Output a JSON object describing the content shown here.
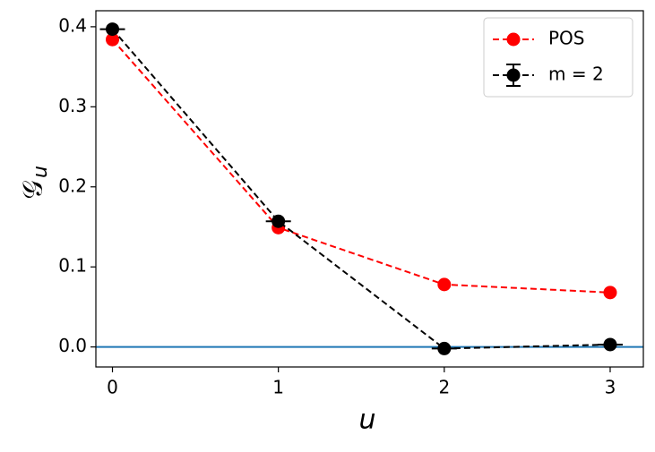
{
  "chart_data": {
    "type": "line",
    "x_label": "u",
    "y_label": "𝒢",
    "y_label_sub": "u",
    "x": [
      0,
      1,
      2,
      3
    ],
    "series": [
      {
        "name": "POS",
        "color": "#ff0000",
        "values": [
          0.384,
          0.149,
          0.078,
          0.068
        ]
      },
      {
        "name": "m = 2",
        "color": "#000000",
        "values": [
          0.397,
          0.157,
          -0.002,
          0.003
        ],
        "errorbar": true
      }
    ],
    "xlim": [
      -0.1,
      3.2
    ],
    "ylim": [
      -0.025,
      0.42
    ],
    "xticks": [
      0,
      1,
      2,
      3
    ],
    "yticks": [
      {
        "value": 0,
        "label": "0.0"
      },
      0.1,
      0.2,
      0.3,
      0.4
    ],
    "hline": {
      "value": 0,
      "color": "#1f77b4"
    },
    "legend": "upper right",
    "grid": false
  }
}
